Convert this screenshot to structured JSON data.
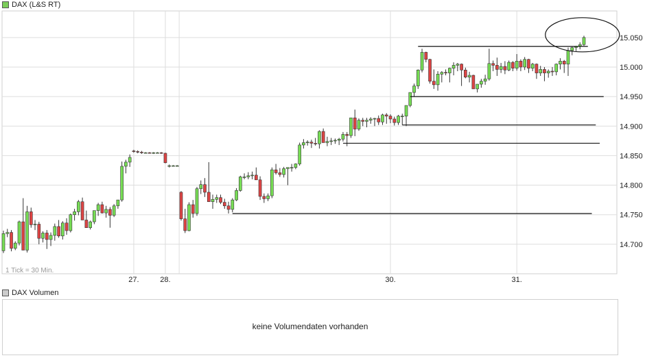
{
  "legend_main": {
    "label": "DAX (L&S RT)",
    "color": "#7ccd5a"
  },
  "legend_volume": {
    "label": "DAX Volumen",
    "color": "#cccccc"
  },
  "tick_note": "1 Tick = 30 Min.",
  "volume_message": "keine Volumendaten vorhanden",
  "colors": {
    "up": "#77dd55",
    "down": "#dd4444",
    "wick": "#333333",
    "grid": "#dddddd"
  },
  "chart_data": {
    "type": "candlestick",
    "x_ticks": [
      "27.",
      "28.",
      "30.",
      "31."
    ],
    "y_ticks": [
      14700,
      14750,
      14800,
      14850,
      14900,
      14950,
      15000,
      15050
    ],
    "y_tick_labels": [
      "14.700",
      "14.750",
      "14.800",
      "14.850",
      "14.900",
      "14.950",
      "15.000",
      "15.050"
    ],
    "ylim": [
      14650,
      15095
    ],
    "bars": [
      [
        14689,
        14723,
        14685,
        14718
      ],
      [
        14718,
        14726,
        14712,
        14720
      ],
      [
        14720,
        14724,
        14688,
        14693
      ],
      [
        14693,
        14705,
        14690,
        14702
      ],
      [
        14702,
        14740,
        14698,
        14738
      ],
      [
        14738,
        14778,
        14690,
        14690
      ],
      [
        14690,
        14765,
        14686,
        14755
      ],
      [
        14755,
        14762,
        14728,
        14733
      ],
      [
        14733,
        14741,
        14724,
        14734
      ],
      [
        14734,
        14738,
        14700,
        14710
      ],
      [
        14710,
        14722,
        14703,
        14719
      ],
      [
        14719,
        14724,
        14692,
        14708
      ],
      [
        14708,
        14720,
        14697,
        14715
      ],
      [
        14715,
        14735,
        14706,
        14730
      ],
      [
        14730,
        14741,
        14711,
        14714
      ],
      [
        14714,
        14739,
        14708,
        14736
      ],
      [
        14736,
        14744,
        14716,
        14723
      ],
      [
        14723,
        14752,
        14720,
        14750
      ],
      [
        14750,
        14760,
        14740,
        14755
      ],
      [
        14755,
        14775,
        14749,
        14772
      ],
      [
        14772,
        14779,
        14741,
        14741
      ],
      [
        14741,
        14757,
        14730,
        14728
      ],
      [
        14728,
        14740,
        14725,
        14738
      ],
      [
        14738,
        14757,
        14734,
        14757
      ],
      [
        14757,
        14770,
        14748,
        14767
      ],
      [
        14767,
        14772,
        14752,
        14753
      ],
      [
        14753,
        14765,
        14745,
        14759
      ],
      [
        14759,
        14763,
        14728,
        14749
      ],
      [
        14749,
        14768,
        14746,
        14765
      ],
      [
        14765,
        14775,
        14760,
        14775
      ],
      [
        14775,
        14840,
        14772,
        14832
      ],
      [
        14832,
        14843,
        14820,
        14839
      ],
      [
        14839,
        14852,
        14831,
        14847
      ],
      [
        14858,
        14860,
        14855,
        14857
      ],
      [
        14857,
        14859,
        14854,
        14856
      ],
      [
        14856,
        14858,
        14853,
        14855
      ],
      [
        14855,
        14856,
        14854,
        14855
      ],
      [
        14855,
        14856,
        14854,
        14854
      ],
      [
        14854,
        14856,
        14853,
        14855
      ],
      [
        14855,
        14856,
        14854,
        14855
      ],
      [
        14855,
        14856,
        14853,
        14854
      ],
      [
        14854,
        14855,
        14837,
        14838
      ],
      [
        14833,
        14835,
        14830,
        14833
      ],
      [
        14833,
        14834,
        14832,
        14833
      ],
      [
        14833,
        14834,
        14832,
        14833
      ],
      [
        14788,
        14790,
        14740,
        14743
      ],
      [
        14743,
        14760,
        14719,
        14723
      ],
      [
        14723,
        14771,
        14722,
        14767
      ],
      [
        14767,
        14775,
        14745,
        14752
      ],
      [
        14752,
        14797,
        14748,
        14794
      ],
      [
        14794,
        14808,
        14785,
        14801
      ],
      [
        14801,
        14812,
        14780,
        14788
      ],
      [
        14788,
        14839,
        14772,
        14772
      ],
      [
        14772,
        14784,
        14760,
        14776
      ],
      [
        14776,
        14784,
        14770,
        14779
      ],
      [
        14779,
        14784,
        14768,
        14771
      ],
      [
        14771,
        14777,
        14760,
        14765
      ],
      [
        14765,
        14772,
        14752,
        14759
      ],
      [
        14759,
        14778,
        14754,
        14775
      ],
      [
        14775,
        14795,
        14773,
        14791
      ],
      [
        14791,
        14816,
        14789,
        14814
      ],
      [
        14814,
        14820,
        14810,
        14814
      ],
      [
        14814,
        14822,
        14810,
        14816
      ],
      [
        14816,
        14823,
        14810,
        14817
      ],
      [
        14817,
        14830,
        14814,
        14809
      ],
      [
        14809,
        14815,
        14775,
        14781
      ],
      [
        14781,
        14786,
        14770,
        14777
      ],
      [
        14777,
        14786,
        14773,
        14782
      ],
      [
        14782,
        14830,
        14778,
        14826
      ],
      [
        14826,
        14836,
        14818,
        14821
      ],
      [
        14821,
        14829,
        14814,
        14818
      ],
      [
        14818,
        14831,
        14813,
        14828
      ],
      [
        14828,
        14830,
        14800,
        14830
      ],
      [
        14830,
        14836,
        14823,
        14830
      ],
      [
        14830,
        14837,
        14827,
        14836
      ],
      [
        14836,
        14872,
        14833,
        14868
      ],
      [
        14868,
        14878,
        14862,
        14872
      ],
      [
        14872,
        14876,
        14867,
        14873
      ],
      [
        14873,
        14877,
        14863,
        14871
      ],
      [
        14871,
        14880,
        14867,
        14870
      ],
      [
        14870,
        14893,
        14862,
        14891
      ],
      [
        14891,
        14896,
        14872,
        14872
      ],
      [
        14872,
        14882,
        14866,
        14874
      ],
      [
        14874,
        14880,
        14868,
        14875
      ],
      [
        14875,
        14879,
        14870,
        14876
      ],
      [
        14876,
        14880,
        14868,
        14878
      ],
      [
        14878,
        14890,
        14874,
        14886
      ],
      [
        14886,
        14890,
        14866,
        14884
      ],
      [
        14884,
        14903,
        14880,
        14914
      ],
      [
        14914,
        14928,
        14883,
        14895
      ],
      [
        14895,
        14913,
        14892,
        14910
      ],
      [
        14910,
        14914,
        14900,
        14908
      ],
      [
        14908,
        14914,
        14898,
        14910
      ],
      [
        14910,
        14915,
        14904,
        14912
      ],
      [
        14912,
        14914,
        14900,
        14913
      ],
      [
        14913,
        14918,
        14902,
        14907
      ],
      [
        14907,
        14921,
        14902,
        14919
      ],
      [
        14919,
        14922,
        14904,
        14917
      ],
      [
        14917,
        14920,
        14905,
        14912
      ],
      [
        14912,
        14916,
        14901,
        14906
      ],
      [
        14906,
        14919,
        14902,
        14917
      ],
      [
        14917,
        14921,
        14902,
        14917
      ],
      [
        14917,
        14925,
        14900,
        14935
      ],
      [
        14935,
        14957,
        14932,
        14957
      ],
      [
        14957,
        14972,
        14950,
        14968
      ],
      [
        14968,
        14996,
        14963,
        14995
      ],
      [
        14995,
        15031,
        14991,
        15025
      ],
      [
        15025,
        15026,
        15008,
        15013
      ],
      [
        15013,
        15014,
        14972,
        14976
      ],
      [
        14976,
        14996,
        14963,
        14970
      ],
      [
        14970,
        14993,
        14960,
        14988
      ],
      [
        14988,
        14993,
        14974,
        14991
      ],
      [
        14991,
        14996,
        14986,
        14990
      ],
      [
        14990,
        14999,
        14974,
        14998
      ],
      [
        14998,
        15008,
        14986,
        15003
      ],
      [
        15003,
        15007,
        14993,
        15005
      ],
      [
        15005,
        15006,
        14968,
        14995
      ],
      [
        14995,
        14999,
        14981,
        14983
      ],
      [
        14983,
        14992,
        14974,
        14986
      ],
      [
        14986,
        14987,
        14964,
        14963
      ],
      [
        14963,
        14971,
        14957,
        14971
      ],
      [
        14971,
        14980,
        14965,
        14976
      ],
      [
        14976,
        14987,
        14970,
        14980
      ],
      [
        14980,
        15031,
        14977,
        15006
      ],
      [
        15006,
        15011,
        14993,
        15003
      ],
      [
        15003,
        15016,
        14985,
        14996
      ],
      [
        14996,
        15007,
        14990,
        15001
      ],
      [
        15001,
        15010,
        14988,
        14995
      ],
      [
        14995,
        15011,
        14993,
        15008
      ],
      [
        15008,
        15010,
        14993,
        14998
      ],
      [
        14998,
        15022,
        14994,
        15010
      ],
      [
        15010,
        15013,
        14993,
        15000
      ],
      [
        15000,
        15017,
        14995,
        15013
      ],
      [
        15013,
        15014,
        14990,
        14998
      ],
      [
        14998,
        15007,
        14993,
        15005
      ],
      [
        15005,
        15006,
        14980,
        14990
      ],
      [
        14990,
        15002,
        14985,
        14996
      ],
      [
        14996,
        15000,
        14976,
        14990
      ],
      [
        14990,
        14996,
        14982,
        14993
      ],
      [
        14993,
        15000,
        14985,
        14992
      ],
      [
        14992,
        15006,
        14986,
        15005
      ],
      [
        15005,
        15015,
        14996,
        15010
      ],
      [
        15010,
        15012,
        14990,
        15005
      ],
      [
        15005,
        15033,
        14985,
        15028
      ],
      [
        15028,
        15034,
        15020,
        15033
      ],
      [
        15033,
        15036,
        15027,
        15035
      ],
      [
        15035,
        15042,
        15030,
        15038
      ],
      [
        15038,
        15053,
        15036,
        15050
      ]
    ],
    "annotations": {
      "resistance_lines": [
        {
          "y": 15035,
          "from": 105,
          "to": 148
        },
        {
          "y": 14950,
          "from": 103,
          "to": 152
        },
        {
          "y": 14902,
          "from": 101,
          "to": 150
        },
        {
          "y": 14871,
          "from": 86,
          "to": 151
        },
        {
          "y": 14752,
          "from": 58,
          "to": 149
        }
      ],
      "circle": {
        "bar": 148,
        "y": 15050
      }
    }
  }
}
